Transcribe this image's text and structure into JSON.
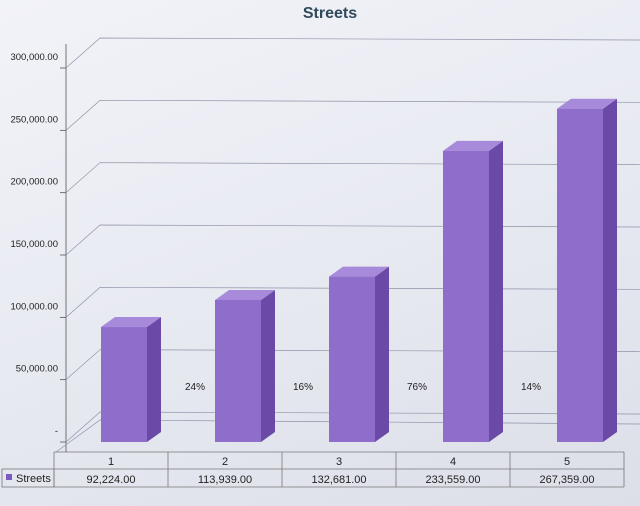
{
  "chart_data": {
    "type": "bar",
    "title": "Streets",
    "categories": [
      "1",
      "2",
      "3",
      "4",
      "5"
    ],
    "series": [
      {
        "name": "Streets",
        "values": [
          92224.0,
          113939.0,
          132681.0,
          233559.0,
          267359.0
        ]
      }
    ],
    "value_labels": [
      "92,224.00",
      "113,939.00",
      "132,681.00",
      "233,559.00",
      "267,359.00"
    ],
    "ylim": [
      0,
      300000
    ],
    "yticks": [
      "-",
      "50,000.00",
      "100,000.00",
      "150,000.00",
      "200,000.00",
      "250,000.00",
      "300,000.00"
    ],
    "annotations": [
      "24%",
      "16%",
      "76%",
      "14%"
    ],
    "legend_position": "data-table-bottom",
    "grid": true,
    "bar_style": "3d-column",
    "colors": {
      "bar_front": "#8f6ecb",
      "bar_side": "#6a4aa6",
      "bar_top": "#a78ad9",
      "title": "#2f4a5c",
      "legend_key": "#7a5cc0"
    }
  }
}
